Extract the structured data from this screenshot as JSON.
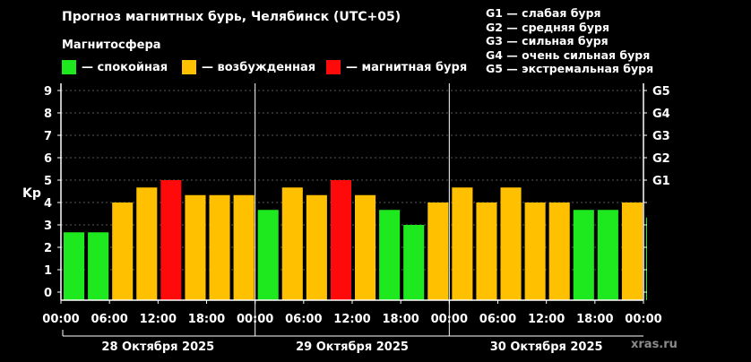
{
  "header": {
    "title": "Прогноз магнитных бурь, Челябинск (UTC+05)",
    "subtitle": "Магнитосфера"
  },
  "legend": [
    {
      "label": "— спокойная",
      "color": "#1ee81e"
    },
    {
      "label": "— возбужденная",
      "color": "#ffc000"
    },
    {
      "label": "— магнитная буря",
      "color": "#ff0a0a"
    }
  ],
  "g_scale": [
    "G1 — слабая буря",
    "G2 — средняя буря",
    "G3 — сильная буря",
    "G4 — очень сильная буря",
    "G5 — экстремальная буря"
  ],
  "watermark": "xras.ru",
  "chart_data": {
    "type": "bar",
    "ylabel": "Kp",
    "ylim": [
      0,
      9
    ],
    "yticks": [
      "0",
      "1",
      "2",
      "3",
      "4",
      "5",
      "6",
      "7",
      "8",
      "9"
    ],
    "right_ticks": [
      {
        "value": 5,
        "label": "G1"
      },
      {
        "value": 6,
        "label": "G2"
      },
      {
        "value": 7,
        "label": "G3"
      },
      {
        "value": 8,
        "label": "G4"
      },
      {
        "value": 9,
        "label": "G5"
      }
    ],
    "grid": true,
    "xtick_labels": [
      "00:00",
      "06:00",
      "12:00",
      "18:00",
      "00:00",
      "06:00",
      "12:00",
      "18:00",
      "00:00",
      "06:00",
      "12:00",
      "18:00",
      "00:00"
    ],
    "days": [
      "28 Октября 2025",
      "29 Октября 2025",
      "30 Октября 2025"
    ],
    "colors": {
      "quiet": "#1ee81e",
      "active": "#ffc000",
      "storm": "#ff0a0a"
    },
    "values": [
      2.67,
      2.67,
      4.0,
      4.67,
      5.0,
      4.33,
      4.33,
      4.33,
      3.67,
      4.67,
      4.33,
      5.0,
      4.33,
      3.67,
      3.0,
      4.0,
      4.67,
      4.0,
      4.67,
      4.0,
      4.0,
      3.67,
      3.67,
      4.0,
      3.33
    ]
  }
}
